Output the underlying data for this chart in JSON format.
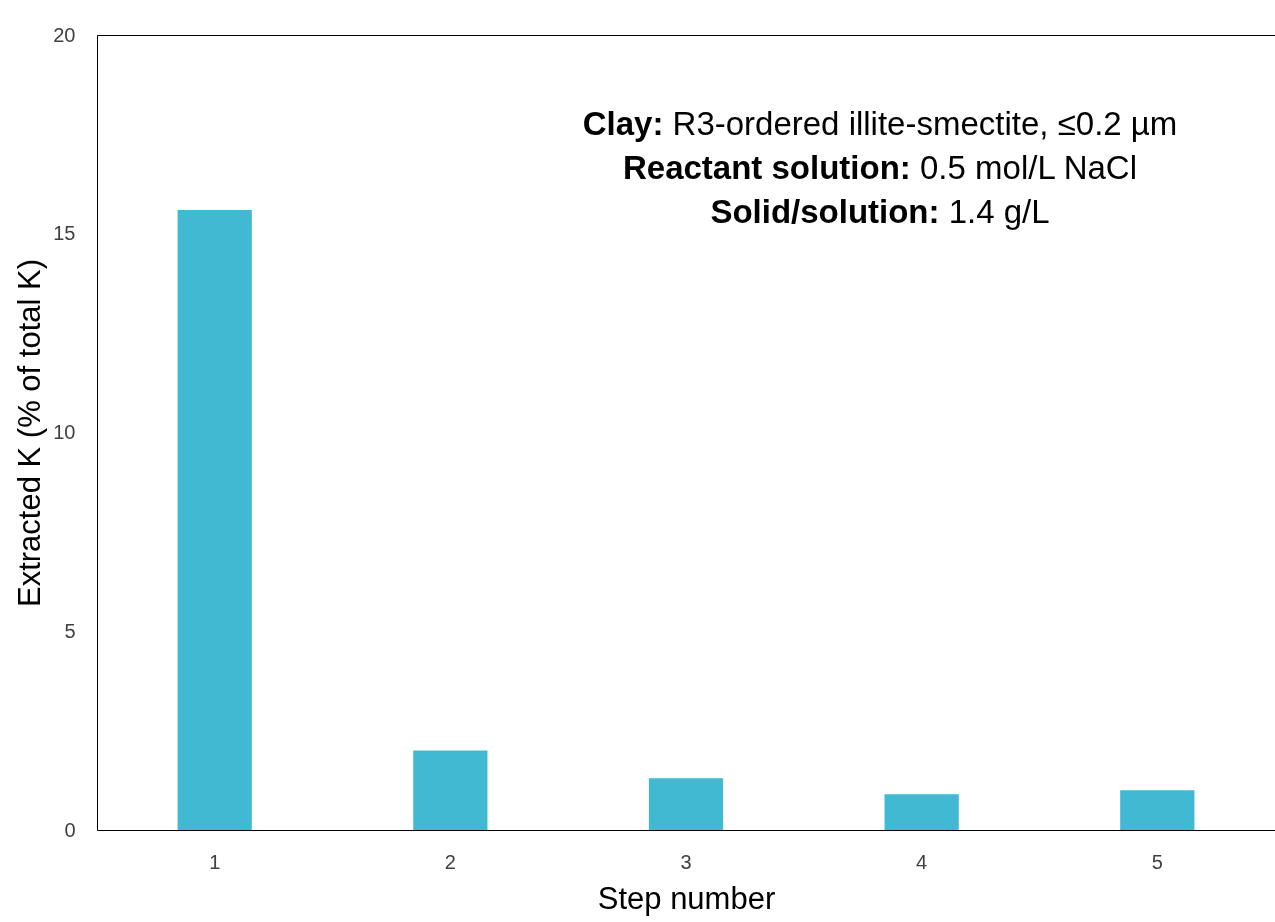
{
  "chart_data": {
    "type": "bar",
    "xlabel": "Step number",
    "ylabel": "Extracted K (% of total K)",
    "categories": [
      "1",
      "2",
      "3",
      "4",
      "5"
    ],
    "values": [
      15.6,
      2.0,
      1.3,
      0.9,
      1.0
    ],
    "color": "#41b9d2",
    "ylim": [
      0,
      20
    ],
    "yticks": [
      0,
      5,
      10,
      15,
      20
    ],
    "grid": false,
    "annotations": [
      "Clay: R3-ordered illite-smectite, ≤0.2 µm",
      "Reactant solution: 0.5 mol/L NaCl",
      "Solid/solution: 1.4 g/L"
    ]
  }
}
